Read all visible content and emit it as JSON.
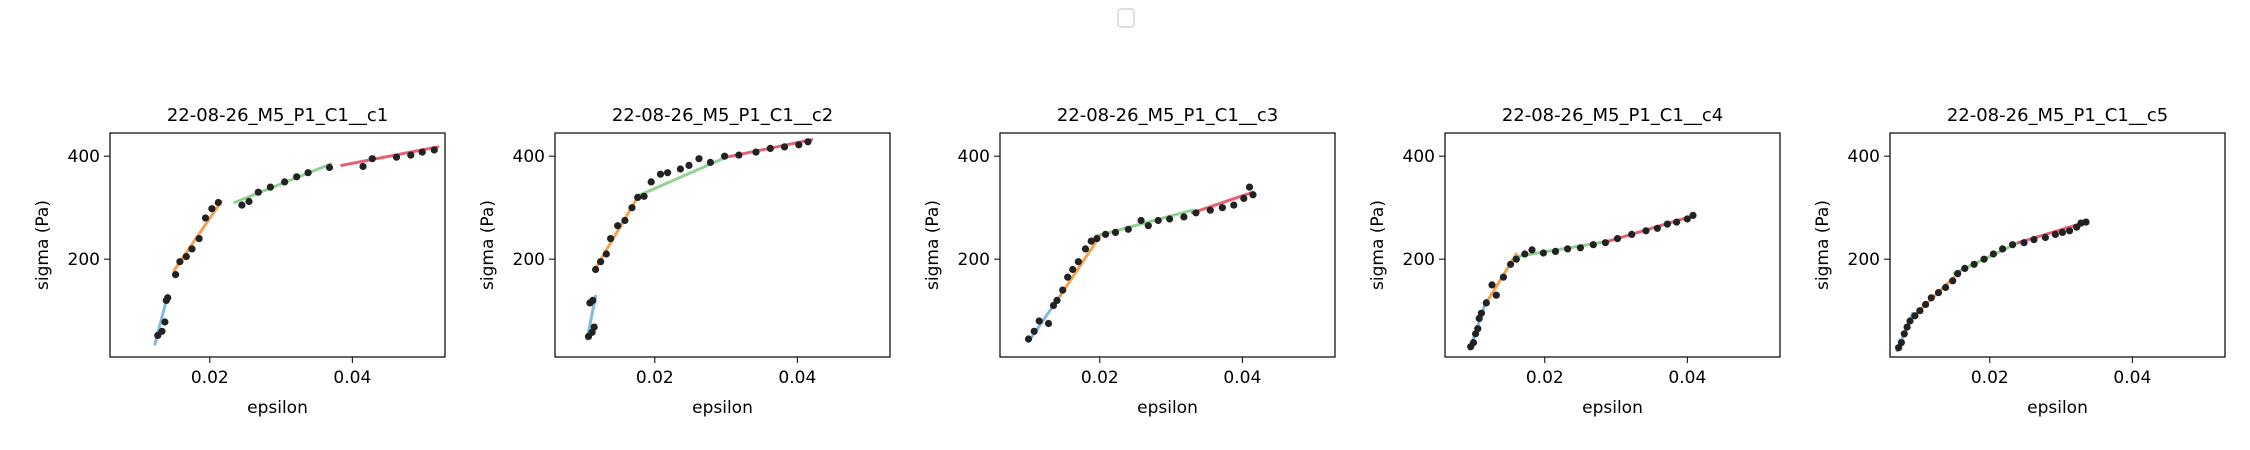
{
  "legend": {
    "entries": []
  },
  "chart_data": [
    {
      "type": "scatter",
      "title": "22-08-26_M5_P1_C1__c1",
      "xlabel": "epsilon",
      "ylabel": "sigma (Pa)",
      "xlim": [
        0.006,
        0.053
      ],
      "ylim": [
        10,
        445
      ],
      "xticks": [
        0.02,
        0.04
      ],
      "xtick_labels": [
        "0.02",
        "0.04"
      ],
      "yticks": [
        200,
        400
      ],
      "ytick_labels": [
        "200",
        "400"
      ],
      "points": [
        [
          0.0127,
          52
        ],
        [
          0.0133,
          60
        ],
        [
          0.0137,
          78
        ],
        [
          0.0139,
          120
        ],
        [
          0.0141,
          125
        ],
        [
          0.0152,
          170
        ],
        [
          0.0158,
          195
        ],
        [
          0.0167,
          205
        ],
        [
          0.0175,
          220
        ],
        [
          0.0185,
          240
        ],
        [
          0.0194,
          280
        ],
        [
          0.0203,
          298
        ],
        [
          0.0212,
          310
        ],
        [
          0.0245,
          305
        ],
        [
          0.0255,
          312
        ],
        [
          0.0268,
          330
        ],
        [
          0.0285,
          340
        ],
        [
          0.0305,
          350
        ],
        [
          0.0322,
          360
        ],
        [
          0.0338,
          368
        ],
        [
          0.0368,
          378
        ],
        [
          0.0415,
          380
        ],
        [
          0.0428,
          395
        ],
        [
          0.0462,
          398
        ],
        [
          0.0482,
          402
        ],
        [
          0.0498,
          408
        ],
        [
          0.0515,
          412
        ]
      ],
      "fits": [
        {
          "color": "#6baed6",
          "x": [
            0.0123,
            0.0141
          ],
          "y": [
            35,
            130
          ]
        },
        {
          "color": "#f5922f",
          "x": [
            0.015,
            0.0216
          ],
          "y": [
            178,
            312
          ]
        },
        {
          "color": "#7fc97f",
          "x": [
            0.0235,
            0.037
          ],
          "y": [
            310,
            385
          ]
        },
        {
          "color": "#e0465e",
          "x": [
            0.0385,
            0.052
          ],
          "y": [
            382,
            418
          ]
        }
      ]
    },
    {
      "type": "scatter",
      "title": "22-08-26_M5_P1_C1__c2",
      "xlabel": "epsilon",
      "ylabel": "sigma (Pa)",
      "xlim": [
        0.006,
        0.053
      ],
      "ylim": [
        10,
        445
      ],
      "xticks": [
        0.02,
        0.04
      ],
      "xtick_labels": [
        "0.02",
        "0.04"
      ],
      "yticks": [
        200,
        400
      ],
      "ytick_labels": [
        "200",
        "400"
      ],
      "points": [
        [
          0.0107,
          50
        ],
        [
          0.0112,
          58
        ],
        [
          0.0115,
          68
        ],
        [
          0.0109,
          115
        ],
        [
          0.0113,
          120
        ],
        [
          0.0117,
          180
        ],
        [
          0.0124,
          195
        ],
        [
          0.0132,
          210
        ],
        [
          0.0138,
          240
        ],
        [
          0.0148,
          265
        ],
        [
          0.0158,
          275
        ],
        [
          0.0168,
          300
        ],
        [
          0.0176,
          320
        ],
        [
          0.0185,
          322
        ],
        [
          0.0195,
          350
        ],
        [
          0.0208,
          365
        ],
        [
          0.0218,
          368
        ],
        [
          0.0236,
          375
        ],
        [
          0.0248,
          382
        ],
        [
          0.0262,
          395
        ],
        [
          0.0278,
          388
        ],
        [
          0.0298,
          400
        ],
        [
          0.0318,
          402
        ],
        [
          0.0342,
          408
        ],
        [
          0.0362,
          415
        ],
        [
          0.0382,
          418
        ],
        [
          0.0402,
          422
        ],
        [
          0.0415,
          428
        ]
      ],
      "fits": [
        {
          "color": "#6baed6",
          "x": [
            0.0105,
            0.0117
          ],
          "y": [
            45,
            128
          ]
        },
        {
          "color": "#f5922f",
          "x": [
            0.0117,
            0.0178
          ],
          "y": [
            182,
            325
          ]
        },
        {
          "color": "#7fc97f",
          "x": [
            0.018,
            0.03
          ],
          "y": [
            325,
            398
          ]
        },
        {
          "color": "#e0465e",
          "x": [
            0.03,
            0.042
          ],
          "y": [
            398,
            432
          ]
        }
      ]
    },
    {
      "type": "scatter",
      "title": "22-08-26_M5_P1_C1__c3",
      "xlabel": "epsilon",
      "ylabel": "sigma (Pa)",
      "xlim": [
        0.006,
        0.053
      ],
      "ylim": [
        10,
        445
      ],
      "xticks": [
        0.02,
        0.04
      ],
      "xtick_labels": [
        "0.02",
        "0.04"
      ],
      "yticks": [
        200,
        400
      ],
      "ytick_labels": [
        "200",
        "400"
      ],
      "points": [
        [
          0.01,
          45
        ],
        [
          0.0108,
          60
        ],
        [
          0.0115,
          80
        ],
        [
          0.0128,
          75
        ],
        [
          0.0135,
          110
        ],
        [
          0.014,
          120
        ],
        [
          0.0148,
          140
        ],
        [
          0.0155,
          165
        ],
        [
          0.0162,
          180
        ],
        [
          0.017,
          195
        ],
        [
          0.018,
          220
        ],
        [
          0.0188,
          235
        ],
        [
          0.0196,
          240
        ],
        [
          0.0208,
          248
        ],
        [
          0.0222,
          252
        ],
        [
          0.024,
          258
        ],
        [
          0.0258,
          275
        ],
        [
          0.0268,
          265
        ],
        [
          0.0282,
          275
        ],
        [
          0.0298,
          278
        ],
        [
          0.0318,
          282
        ],
        [
          0.0335,
          290
        ],
        [
          0.0355,
          295
        ],
        [
          0.0372,
          300
        ],
        [
          0.0388,
          305
        ],
        [
          0.0402,
          318
        ],
        [
          0.041,
          340
        ],
        [
          0.0415,
          325
        ]
      ],
      "fits": [
        {
          "color": "#6baed6",
          "x": [
            0.01,
            0.0145
          ],
          "y": [
            40,
            130
          ]
        },
        {
          "color": "#f5922f",
          "x": [
            0.0145,
            0.02
          ],
          "y": [
            130,
            245
          ]
        },
        {
          "color": "#7fc97f",
          "x": [
            0.0195,
            0.033
          ],
          "y": [
            245,
            295
          ]
        },
        {
          "color": "#e0465e",
          "x": [
            0.033,
            0.0415
          ],
          "y": [
            290,
            330
          ]
        }
      ]
    },
    {
      "type": "scatter",
      "title": "22-08-26_M5_P1_C1__c4",
      "xlabel": "epsilon",
      "ylabel": "sigma (Pa)",
      "xlim": [
        0.006,
        0.053
      ],
      "ylim": [
        10,
        445
      ],
      "xticks": [
        0.02,
        0.04
      ],
      "xtick_labels": [
        "0.02",
        "0.04"
      ],
      "yticks": [
        200,
        400
      ],
      "ytick_labels": [
        "200",
        "400"
      ],
      "points": [
        [
          0.0096,
          30
        ],
        [
          0.01,
          38
        ],
        [
          0.0103,
          55
        ],
        [
          0.0106,
          65
        ],
        [
          0.0108,
          85
        ],
        [
          0.0111,
          95
        ],
        [
          0.0118,
          115
        ],
        [
          0.0126,
          150
        ],
        [
          0.0132,
          130
        ],
        [
          0.0142,
          165
        ],
        [
          0.0152,
          190
        ],
        [
          0.016,
          200
        ],
        [
          0.0172,
          210
        ],
        [
          0.0182,
          218
        ],
        [
          0.0198,
          212
        ],
        [
          0.0215,
          215
        ],
        [
          0.0232,
          220
        ],
        [
          0.025,
          222
        ],
        [
          0.0268,
          228
        ],
        [
          0.0285,
          232
        ],
        [
          0.0302,
          240
        ],
        [
          0.0322,
          248
        ],
        [
          0.0342,
          255
        ],
        [
          0.0358,
          260
        ],
        [
          0.0372,
          268
        ],
        [
          0.0385,
          272
        ],
        [
          0.04,
          278
        ],
        [
          0.0408,
          285
        ]
      ],
      "fits": [
        {
          "color": "#6baed6",
          "x": [
            0.0095,
            0.0118
          ],
          "y": [
            25,
            120
          ]
        },
        {
          "color": "#f5922f",
          "x": [
            0.0118,
            0.016
          ],
          "y": [
            115,
            210
          ]
        },
        {
          "color": "#7fc97f",
          "x": [
            0.016,
            0.029
          ],
          "y": [
            205,
            235
          ]
        },
        {
          "color": "#e0465e",
          "x": [
            0.029,
            0.041
          ],
          "y": [
            235,
            285
          ]
        }
      ]
    },
    {
      "type": "scatter",
      "title": "22-08-26_M5_P1_C1__c5",
      "xlabel": "epsilon",
      "ylabel": "sigma (Pa)",
      "xlim": [
        0.006,
        0.053
      ],
      "ylim": [
        10,
        445
      ],
      "xticks": [
        0.02,
        0.04
      ],
      "xtick_labels": [
        "0.02",
        "0.04"
      ],
      "yticks": [
        200,
        400
      ],
      "ytick_labels": [
        "200",
        "400"
      ],
      "points": [
        [
          0.0072,
          28
        ],
        [
          0.0076,
          38
        ],
        [
          0.008,
          55
        ],
        [
          0.0084,
          68
        ],
        [
          0.0088,
          80
        ],
        [
          0.0095,
          90
        ],
        [
          0.0102,
          100
        ],
        [
          0.011,
          112
        ],
        [
          0.0118,
          125
        ],
        [
          0.0128,
          135
        ],
        [
          0.0138,
          145
        ],
        [
          0.0148,
          158
        ],
        [
          0.0155,
          172
        ],
        [
          0.0165,
          182
        ],
        [
          0.0178,
          190
        ],
        [
          0.0192,
          200
        ],
        [
          0.0205,
          210
        ],
        [
          0.0218,
          220
        ],
        [
          0.0232,
          228
        ],
        [
          0.0248,
          232
        ],
        [
          0.0262,
          238
        ],
        [
          0.0278,
          242
        ],
        [
          0.0292,
          248
        ],
        [
          0.0302,
          252
        ],
        [
          0.0312,
          255
        ],
        [
          0.0322,
          262
        ],
        [
          0.0328,
          270
        ],
        [
          0.0335,
          272
        ]
      ],
      "fits": [
        {
          "color": "#6baed6",
          "x": [
            0.007,
            0.0092
          ],
          "y": [
            22,
            95
          ]
        },
        {
          "color": "#f5922f",
          "x": [
            0.0092,
            0.015
          ],
          "y": [
            88,
            165
          ]
        },
        {
          "color": "#7fc97f",
          "x": [
            0.015,
            0.024
          ],
          "y": [
            172,
            232
          ]
        },
        {
          "color": "#e0465e",
          "x": [
            0.024,
            0.0335
          ],
          "y": [
            232,
            272
          ]
        }
      ]
    }
  ]
}
